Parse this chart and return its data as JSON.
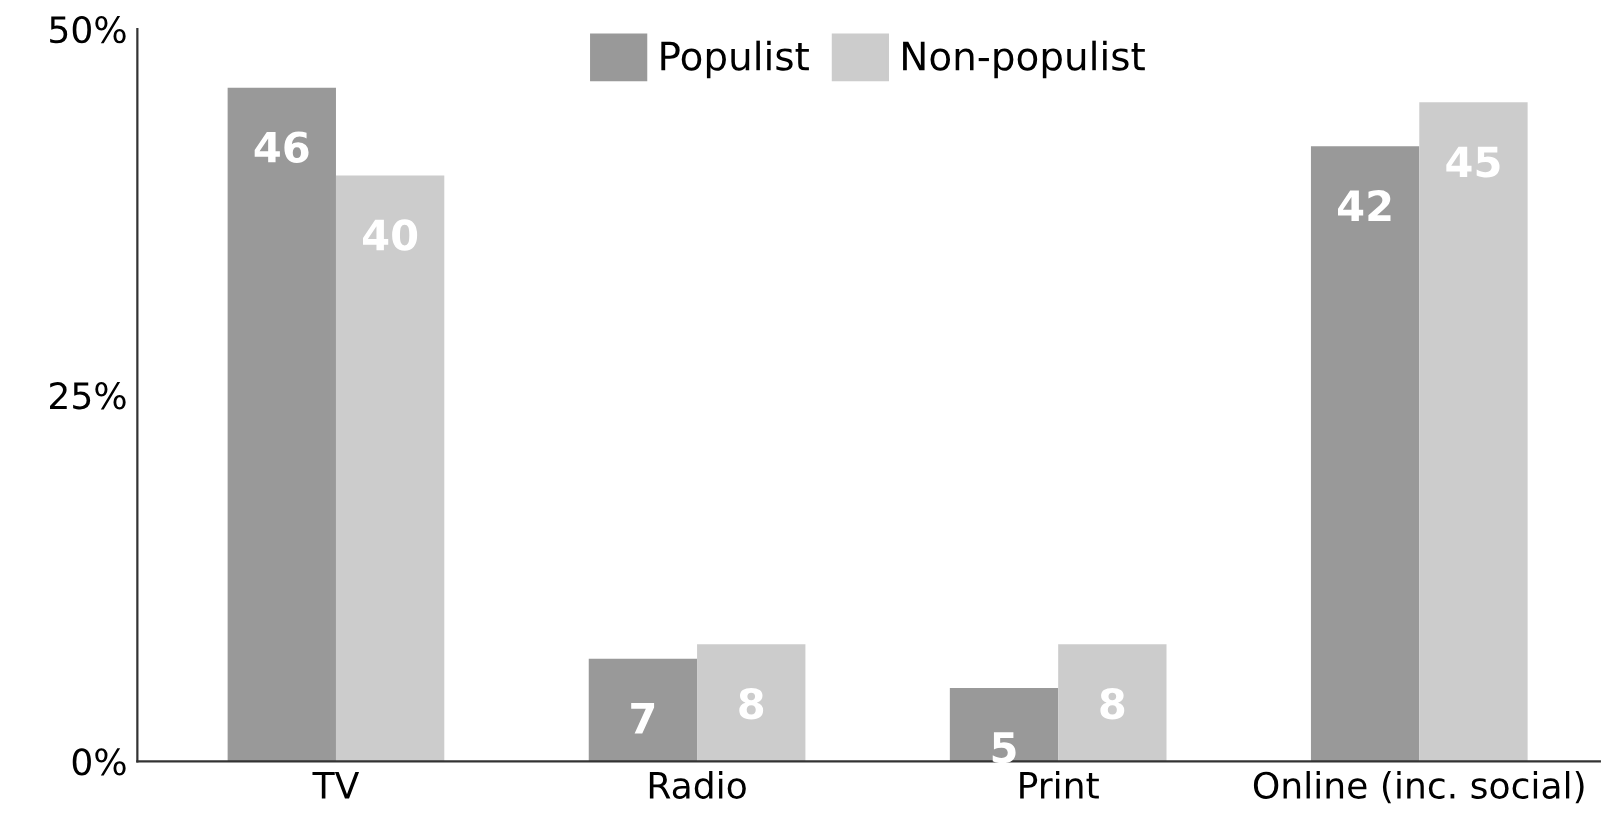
{
  "chart_data": {
    "type": "bar",
    "categories": [
      "TV",
      "Radio",
      "Print",
      "Online (inc. social)"
    ],
    "series": [
      {
        "name": "Populist",
        "color": "#999999",
        "values": [
          46,
          7,
          5,
          42
        ]
      },
      {
        "name": "Non-populist",
        "color": "#cccccc",
        "values": [
          40,
          8,
          8,
          45
        ]
      }
    ],
    "ylim": [
      0,
      50
    ],
    "yticks": [
      {
        "value": 0,
        "label": "0%"
      },
      {
        "value": 25,
        "label": "25%"
      },
      {
        "value": 50,
        "label": "50%"
      }
    ],
    "data_labels": true,
    "grid": false,
    "legend": "top"
  }
}
